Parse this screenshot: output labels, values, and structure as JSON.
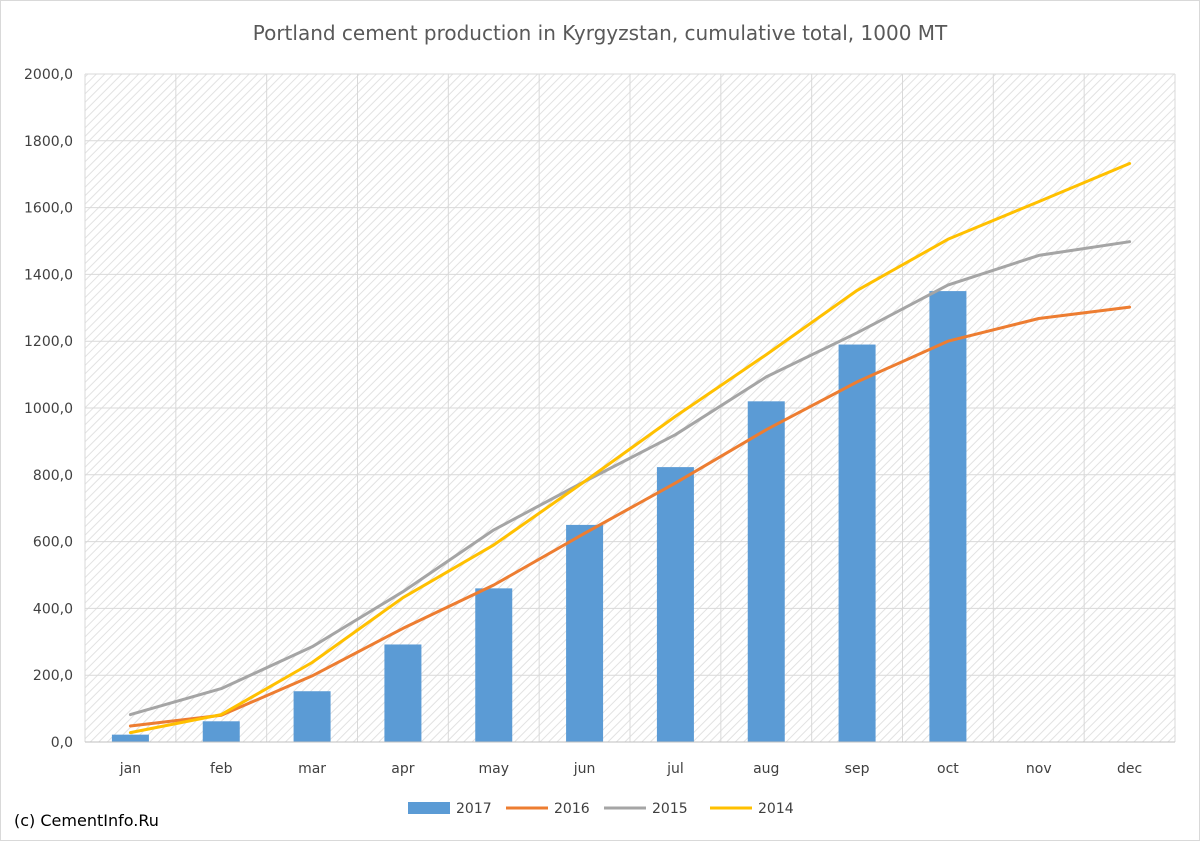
{
  "chart_data": {
    "type": "bar",
    "title": "Portland cement production in Kyrgyzstan, cumulative total, 1000 MT",
    "categories": [
      "jan",
      "feb",
      "mar",
      "apr",
      "may",
      "jun",
      "jul",
      "aug",
      "sep",
      "oct",
      "nov",
      "dec"
    ],
    "ylim": [
      0,
      2000
    ],
    "yticks": [
      "0,0",
      "200,0",
      "400,0",
      "600,0",
      "800,0",
      "1000,0",
      "1200,0",
      "1400,0",
      "1600,0",
      "1800,0",
      "2000,0"
    ],
    "grid": true,
    "legend_position": "bottom",
    "series": [
      {
        "name": "2017",
        "type": "bar",
        "color": "#5b9bd5",
        "values": [
          22,
          62,
          152,
          292,
          460,
          650,
          823,
          1020,
          1190,
          1350,
          null,
          null
        ]
      },
      {
        "name": "2016",
        "type": "line",
        "color": "#ed7d31",
        "values": [
          48,
          80,
          198,
          340,
          470,
          625,
          775,
          935,
          1078,
          1200,
          1268,
          1302
        ]
      },
      {
        "name": "2015",
        "type": "line",
        "color": "#a5a5a5",
        "values": [
          82,
          160,
          285,
          450,
          635,
          780,
          920,
          1093,
          1225,
          1368,
          1457,
          1498
        ]
      },
      {
        "name": "2014",
        "type": "line",
        "color": "#ffc000",
        "values": [
          28,
          82,
          238,
          432,
          590,
          780,
          975,
          1160,
          1352,
          1505,
          1618,
          1732
        ]
      }
    ]
  },
  "credit": "(c) CementInfo.Ru"
}
